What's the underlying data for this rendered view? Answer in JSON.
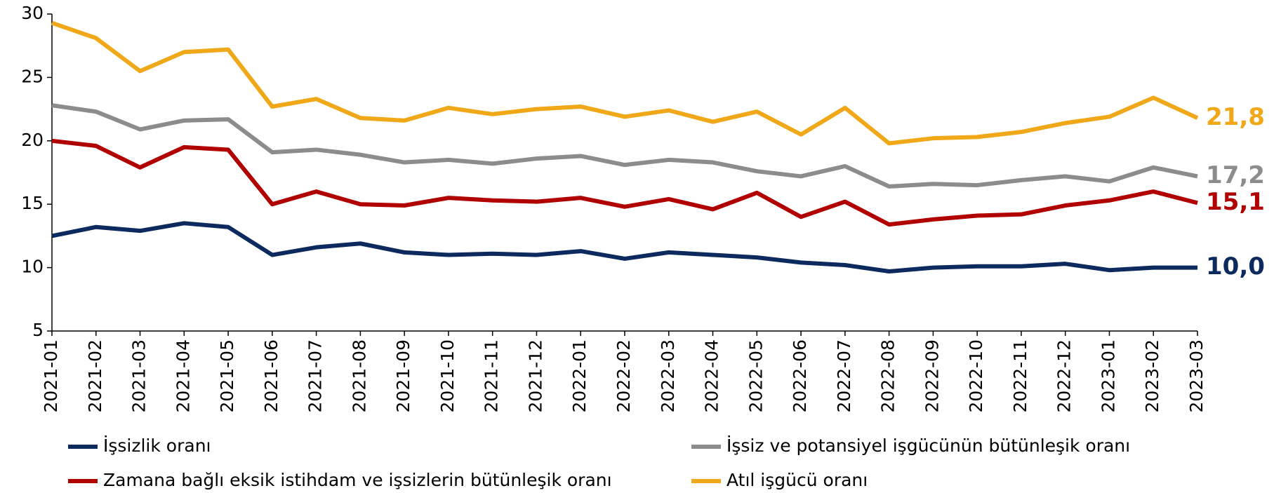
{
  "chart_data": {
    "type": "line",
    "x": [
      "2021-01",
      "2021-02",
      "2021-03",
      "2021-04",
      "2021-05",
      "2021-06",
      "2021-07",
      "2021-08",
      "2021-09",
      "2021-10",
      "2021-11",
      "2021-12",
      "2022-01",
      "2022-02",
      "2022-03",
      "2022-04",
      "2022-05",
      "2022-06",
      "2022-07",
      "2022-08",
      "2022-09",
      "2022-10",
      "2022-11",
      "2022-12",
      "2023-01",
      "2023-02",
      "2023-03"
    ],
    "series": [
      {
        "name": "İşsizlik oranı",
        "color": "#0d2a5e",
        "values": [
          12.5,
          13.2,
          12.9,
          13.5,
          13.2,
          11.0,
          11.6,
          11.9,
          11.2,
          11.0,
          11.1,
          11.0,
          11.3,
          10.7,
          11.2,
          11.0,
          10.8,
          10.4,
          10.2,
          9.7,
          10.0,
          10.1,
          10.1,
          10.3,
          9.8,
          10.0,
          10.0
        ],
        "value_labels": [
          null,
          null,
          null,
          null,
          null,
          null,
          null,
          null,
          null,
          null,
          null,
          null,
          null,
          null,
          null,
          null,
          null,
          null,
          null,
          null,
          null,
          null,
          null,
          null,
          null,
          null,
          "10,0"
        ]
      },
      {
        "name": "İşsiz ve potansiyel işgücünün bütünleşik oranı",
        "color": "#8c8c8c",
        "values": [
          22.8,
          22.3,
          20.9,
          21.6,
          21.7,
          19.1,
          19.3,
          18.9,
          18.3,
          18.5,
          18.2,
          18.6,
          18.8,
          18.1,
          18.5,
          18.3,
          17.6,
          17.2,
          18.0,
          16.4,
          16.6,
          16.5,
          16.9,
          17.2,
          16.8,
          17.9,
          17.2
        ],
        "value_labels": [
          null,
          null,
          null,
          null,
          null,
          null,
          null,
          null,
          null,
          null,
          null,
          null,
          null,
          null,
          null,
          null,
          null,
          null,
          null,
          null,
          null,
          null,
          null,
          null,
          null,
          null,
          "17,2"
        ]
      },
      {
        "name": "Zamana bağlı eksik istihdam ve işsizlerin bütünleşik oranı",
        "color": "#b00000",
        "values": [
          20.0,
          19.6,
          17.9,
          19.5,
          19.3,
          15.0,
          16.0,
          15.0,
          14.9,
          15.5,
          15.3,
          15.2,
          15.5,
          14.8,
          15.4,
          14.6,
          15.9,
          14.0,
          15.2,
          13.4,
          13.8,
          14.1,
          14.2,
          14.9,
          15.3,
          16.0,
          15.1
        ],
        "value_labels": [
          null,
          null,
          null,
          null,
          null,
          null,
          null,
          null,
          null,
          null,
          null,
          null,
          null,
          null,
          null,
          null,
          null,
          null,
          null,
          null,
          null,
          null,
          null,
          null,
          null,
          null,
          "15,1"
        ]
      },
      {
        "name": "Atıl işgücü oranı",
        "color": "#f0a818",
        "values": [
          29.3,
          28.1,
          25.5,
          27.0,
          27.2,
          22.7,
          23.3,
          21.8,
          21.6,
          22.6,
          22.1,
          22.5,
          22.7,
          21.9,
          22.4,
          21.5,
          22.3,
          20.5,
          22.6,
          19.8,
          20.2,
          20.3,
          20.7,
          21.4,
          21.9,
          23.4,
          21.8
        ],
        "value_labels": [
          null,
          null,
          null,
          null,
          null,
          null,
          null,
          null,
          null,
          null,
          null,
          null,
          null,
          null,
          null,
          null,
          null,
          null,
          null,
          null,
          null,
          null,
          null,
          null,
          null,
          null,
          "21,8"
        ]
      }
    ],
    "ylim": [
      5,
      30
    ],
    "yticks": [
      5,
      10,
      15,
      20,
      25,
      30
    ],
    "grid": false,
    "legend": "bottom"
  }
}
